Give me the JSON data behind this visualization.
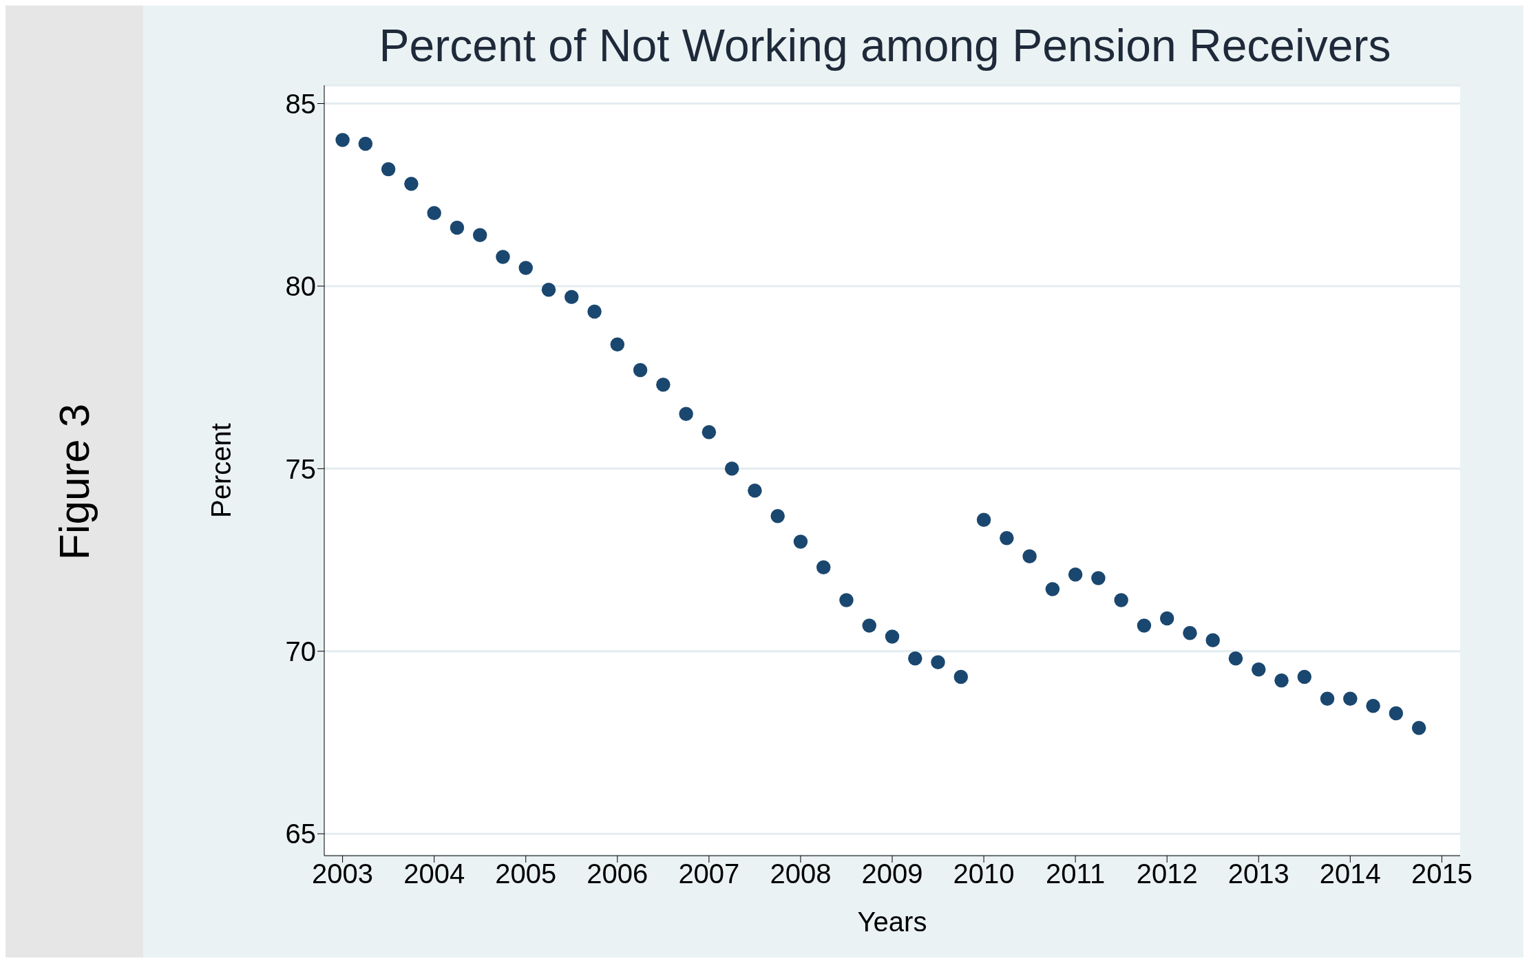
{
  "chart_data": {
    "type": "scatter",
    "title": "Percent of Not Working among Pension Receivers",
    "xlabel": "Years",
    "ylabel": "Percent",
    "annotations": [
      "Figure 3"
    ],
    "x": [
      2003,
      2003.25,
      2003.5,
      2003.75,
      2004,
      2004.25,
      2004.5,
      2004.75,
      2005,
      2005.25,
      2005.5,
      2005.75,
      2006,
      2006.25,
      2006.5,
      2006.75,
      2007,
      2007.25,
      2007.5,
      2007.75,
      2008,
      2008.25,
      2008.5,
      2008.75,
      2009,
      2009.25,
      2009.5,
      2009.75,
      2010,
      2010.25,
      2010.5,
      2010.75,
      2011,
      2011.25,
      2011.5,
      2011.75,
      2012,
      2012.25,
      2012.5,
      2012.75,
      2013,
      2013.25,
      2013.5,
      2013.75,
      2014,
      2014.25,
      2014.5,
      2014.75
    ],
    "values": [
      84.0,
      83.9,
      83.2,
      82.8,
      82.0,
      81.6,
      81.4,
      80.8,
      80.5,
      79.9,
      79.7,
      79.3,
      78.4,
      77.7,
      77.3,
      76.5,
      76.0,
      75.0,
      74.4,
      73.7,
      73.0,
      72.3,
      71.4,
      70.7,
      70.4,
      69.8,
      69.7,
      69.3,
      73.6,
      73.1,
      72.6,
      71.7,
      72.1,
      72.0,
      71.4,
      70.7,
      70.9,
      70.5,
      70.3,
      69.8,
      69.5,
      69.2,
      69.3,
      68.7,
      68.7,
      68.5,
      68.3,
      67.9
    ],
    "color": "#1a476f",
    "marker": "circle",
    "xlim": [
      2002.8,
      2015.2
    ],
    "xticks": [
      2003,
      2004,
      2005,
      2006,
      2007,
      2008,
      2009,
      2010,
      2011,
      2012,
      2013,
      2014,
      2015
    ],
    "ylim": [
      64.4,
      85.5
    ],
    "yticks": [
      65,
      70,
      75,
      80,
      85
    ],
    "grid": "y"
  }
}
